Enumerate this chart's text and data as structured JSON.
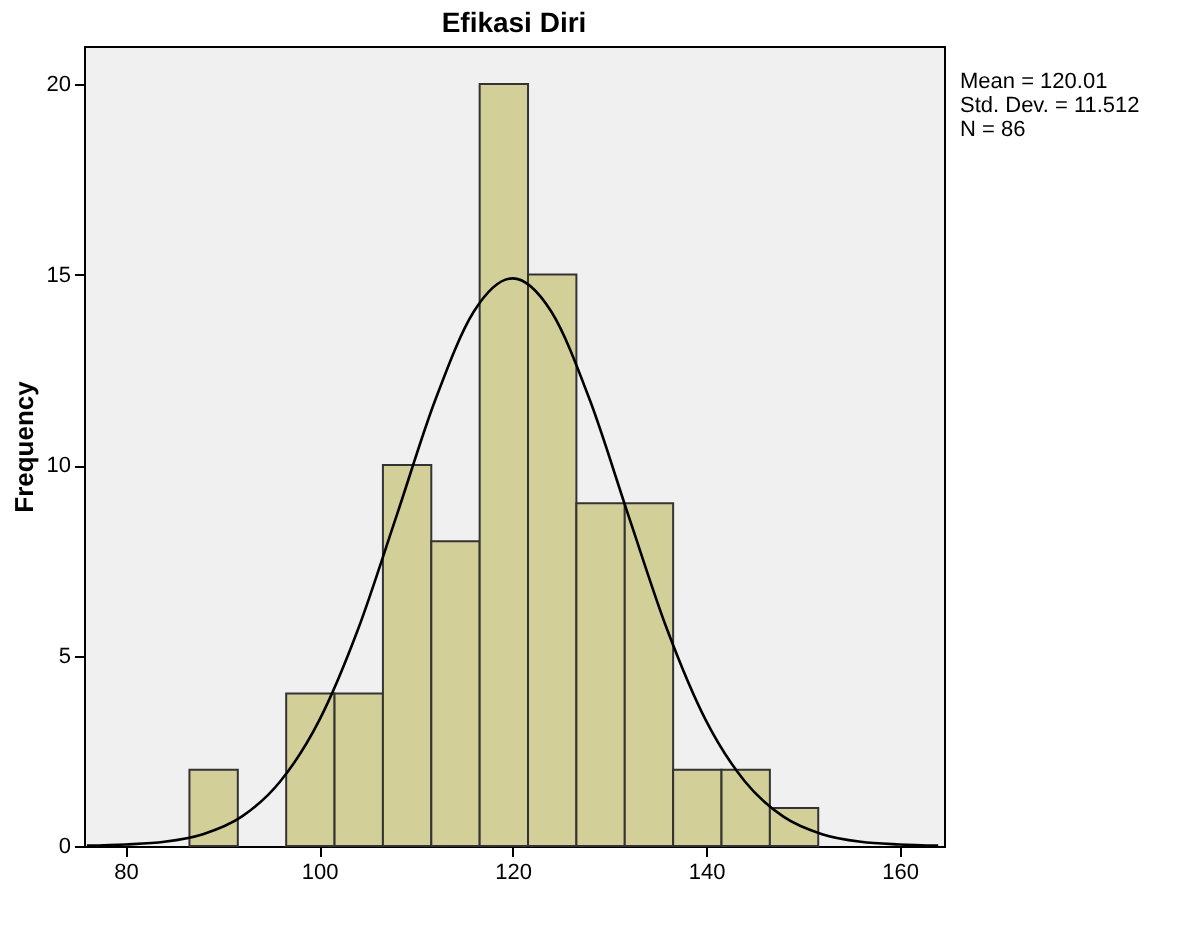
{
  "chart_data": {
    "type": "histogram",
    "title": "Efikasi Diri",
    "ylabel": "Frequency",
    "bins": [
      86.6,
      91.6,
      96.6,
      101.6,
      106.6,
      111.6,
      116.6,
      121.6,
      126.6,
      131.6,
      136.6,
      141.6,
      146.6,
      151.6
    ],
    "values": [
      2,
      0,
      4,
      4,
      10,
      8,
      20,
      15,
      9,
      9,
      2,
      2,
      1
    ],
    "color": "#d3cf99",
    "series": [
      {
        "type": "line",
        "color": "#000000",
        "x": [
          76,
          80,
          84,
          88,
          92,
          96,
          100,
          104,
          108,
          112,
          116,
          120,
          124,
          128,
          132,
          136,
          140,
          144,
          148,
          152,
          156,
          160,
          164
        ],
        "values": [
          0.01,
          0.04,
          0.11,
          0.31,
          0.77,
          1.7,
          3.29,
          5.67,
          8.66,
          11.7,
          14.03,
          14.9,
          14.03,
          11.7,
          8.66,
          5.67,
          3.29,
          1.7,
          0.77,
          0.31,
          0.11,
          0.04,
          0.01
        ]
      }
    ],
    "xlim": [
      75.7,
      164.6
    ],
    "xticks": [
      80,
      100,
      120,
      140,
      160
    ],
    "ylim": [
      0,
      21
    ],
    "yticks": [
      0,
      5,
      10,
      15,
      20
    ],
    "grid": false,
    "annotations": [
      "Mean = 120.01",
      "Std. Dev. = 11.512",
      "N = 86"
    ]
  }
}
